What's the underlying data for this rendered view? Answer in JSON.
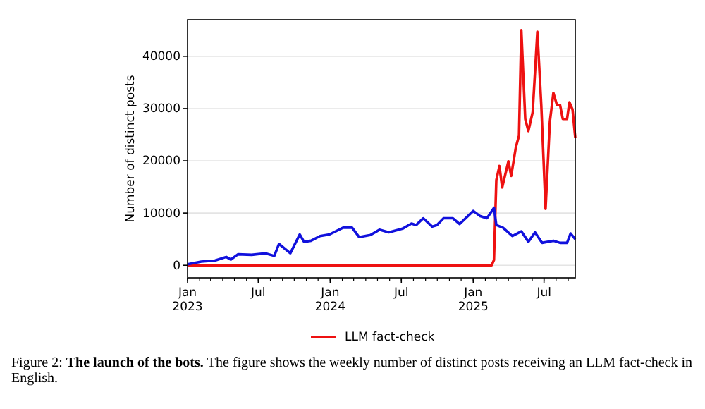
{
  "chart_data": {
    "type": "line",
    "ylabel": "Number of distinct posts",
    "xlim": [
      "2023-01-01",
      "2025-09-19"
    ],
    "xticks": [
      {
        "value": "2023-01-01",
        "label": "Jan\n2023"
      },
      {
        "value": "2023-07-01",
        "label": "Jul"
      },
      {
        "value": "2024-01-01",
        "label": "Jan\n2024"
      },
      {
        "value": "2024-07-01",
        "label": "Jul"
      },
      {
        "value": "2025-01-01",
        "label": "Jan\n2025"
      },
      {
        "value": "2025-07-01",
        "label": "Jul"
      }
    ],
    "ylim": [
      -2400,
      47000
    ],
    "yticks": [
      0,
      10000,
      20000,
      30000,
      40000
    ],
    "grid": "y",
    "legend": "bottom",
    "marker": "none",
    "line_style": "solid",
    "series": [
      {
        "name": "LLM fact-check",
        "color": "#ee1111",
        "x": [
          "2023-01-01",
          "2025-02-17",
          "2025-02-23",
          "2025-03-01",
          "2025-03-09",
          "2025-03-16",
          "2025-04-01",
          "2025-04-08",
          "2025-04-20",
          "2025-04-28",
          "2025-05-04",
          "2025-05-14",
          "2025-05-22",
          "2025-06-02",
          "2025-06-14",
          "2025-06-24",
          "2025-07-05",
          "2025-07-16",
          "2025-07-25",
          "2025-08-03",
          "2025-08-11",
          "2025-08-18",
          "2025-08-29",
          "2025-09-04",
          "2025-09-12",
          "2025-09-19"
        ],
        "values": [
          0,
          0,
          1000,
          16300,
          19000,
          14900,
          19900,
          17100,
          22600,
          24800,
          45000,
          28000,
          25700,
          29300,
          44700,
          30700,
          10800,
          27500,
          33000,
          30700,
          30700,
          28000,
          28000,
          31200,
          29800,
          24400
        ]
      },
      {
        "color": "#1111dd",
        "x": [
          "2023-01-01",
          "2023-02-05",
          "2023-03-12",
          "2023-04-10",
          "2023-04-22",
          "2023-05-10",
          "2023-06-14",
          "2023-07-19",
          "2023-08-11",
          "2023-08-23",
          "2023-09-21",
          "2023-10-15",
          "2023-10-26",
          "2023-11-13",
          "2023-12-06",
          "2023-12-30",
          "2024-02-03",
          "2024-02-26",
          "2024-03-15",
          "2024-04-13",
          "2024-05-06",
          "2024-05-30",
          "2024-07-04",
          "2024-07-27",
          "2024-08-08",
          "2024-08-26",
          "2024-09-18",
          "2024-09-30",
          "2024-10-17",
          "2024-11-10",
          "2024-11-27",
          "2025-01-01",
          "2025-01-19",
          "2025-02-05",
          "2025-02-23",
          "2025-03-01",
          "2025-03-18",
          "2025-04-11",
          "2025-05-04",
          "2025-05-22",
          "2025-06-08",
          "2025-06-26",
          "2025-07-25",
          "2025-08-11",
          "2025-08-29",
          "2025-09-07",
          "2025-09-19"
        ],
        "values": [
          200,
          700,
          900,
          1600,
          1100,
          2100,
          2000,
          2300,
          1800,
          4100,
          2300,
          5900,
          4500,
          4700,
          5600,
          5900,
          7200,
          7200,
          5400,
          5800,
          6800,
          6300,
          7000,
          8000,
          7700,
          9000,
          7400,
          7700,
          9000,
          9000,
          7900,
          10400,
          9400,
          9000,
          11000,
          7700,
          7200,
          5600,
          6500,
          4500,
          6300,
          4300,
          4700,
          4300,
          4300,
          6100,
          5000
        ]
      }
    ],
    "annotations": [
      "Figure 2:",
      "The launch of the bots.",
      "The figure shows the weekly number of distinct posts receiving an LLM fact-check in English."
    ]
  }
}
